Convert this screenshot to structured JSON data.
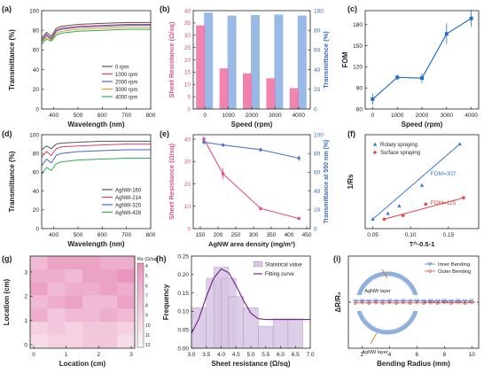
{
  "chart_data": [
    {
      "panel": "(a)",
      "type": "line",
      "xlabel": "Wavelength (nm)",
      "ylabel": "Transmittance (%)",
      "xlim": [
        350,
        800
      ],
      "ylim": [
        0,
        100
      ],
      "xticks": [
        "400",
        "500",
        "600",
        "700",
        "800"
      ],
      "yticks": [
        "0",
        "20",
        "40",
        "60",
        "80",
        "100"
      ],
      "legend_position": "bottom-right",
      "series": [
        {
          "name": "0 rpm",
          "color": "#555555",
          "x": [
            350,
            370,
            390,
            410,
            430,
            500,
            600,
            700,
            800
          ],
          "values": [
            72,
            78,
            74,
            82,
            84,
            86,
            87,
            88,
            88
          ]
        },
        {
          "name": "1000 rpm",
          "color": "#e04060",
          "x": [
            350,
            370,
            390,
            410,
            430,
            500,
            600,
            700,
            800
          ],
          "values": [
            70,
            76,
            72,
            80,
            82,
            84,
            85,
            86,
            86
          ]
        },
        {
          "name": "2000 rpm",
          "color": "#4466cc",
          "x": [
            350,
            370,
            390,
            410,
            430,
            500,
            600,
            700,
            800
          ],
          "values": [
            69,
            75,
            71,
            79,
            81,
            83,
            84,
            85,
            85
          ]
        },
        {
          "name": "3000 rpm",
          "color": "#d9a020",
          "x": [
            350,
            370,
            390,
            410,
            430,
            500,
            600,
            700,
            800
          ],
          "values": [
            68,
            73,
            70,
            77,
            79,
            81,
            82,
            83,
            83
          ]
        },
        {
          "name": "4000 rpm",
          "color": "#33aa55",
          "x": [
            350,
            370,
            390,
            410,
            430,
            500,
            600,
            700,
            800
          ],
          "values": [
            66,
            71,
            69,
            75,
            77,
            79,
            80,
            81,
            81
          ]
        }
      ]
    },
    {
      "panel": "(b)",
      "type": "bar",
      "xlabel": "Speed (rpm)",
      "ylabel": "Sheet Resistance (Ω/sq)",
      "ylabel2": "Transmittance (%)",
      "categories": [
        "0",
        "1000",
        "2000",
        "3000",
        "4000"
      ],
      "ylim": [
        0,
        40
      ],
      "ylim2": [
        0,
        100
      ],
      "yticks": [
        "0",
        "5",
        "10",
        "15",
        "20",
        "25",
        "30",
        "35",
        "40"
      ],
      "yticks2": [
        "0",
        "20",
        "40",
        "60",
        "80",
        "100"
      ],
      "series": [
        {
          "name": "Sheet Resistance",
          "color": "#ee6fa0",
          "values": [
            34,
            16.5,
            14.5,
            12.5,
            8.5
          ]
        },
        {
          "name": "Transmittance",
          "color": "#7fa7e0",
          "values": [
            98,
            95,
            95.5,
            96,
            95
          ]
        }
      ]
    },
    {
      "panel": "(c)",
      "type": "line",
      "xlabel": "Speed (rpm)",
      "ylabel": "FOM",
      "xlim": [
        -300,
        4300
      ],
      "ylim": [
        60,
        200
      ],
      "xticks": [
        "0",
        "1000",
        "2000",
        "3000",
        "4000"
      ],
      "yticks": [
        "60",
        "90",
        "120",
        "150",
        "180"
      ],
      "series": [
        {
          "name": "",
          "color": "#2a6fbf",
          "x": [
            0,
            1000,
            2000,
            3000,
            4000
          ],
          "values": [
            74,
            105,
            104,
            167,
            189
          ],
          "err": [
            8,
            4,
            7,
            15,
            12
          ]
        }
      ]
    },
    {
      "panel": "(d)",
      "type": "line",
      "xlabel": "Wavelength (nm)",
      "ylabel": "Transmittance (%)",
      "xlim": [
        350,
        800
      ],
      "ylim": [
        0,
        100
      ],
      "xticks": [
        "400",
        "500",
        "600",
        "700",
        "800"
      ],
      "yticks": [
        "0",
        "20",
        "40",
        "60",
        "80",
        "100"
      ],
      "legend_position": "bottom-right",
      "series": [
        {
          "name": "AgNW-160",
          "color": "#555555",
          "x": [
            350,
            370,
            390,
            410,
            430,
            500,
            600,
            700,
            800
          ],
          "values": [
            84,
            88,
            85,
            90,
            91,
            92,
            93,
            93,
            93
          ]
        },
        {
          "name": "AgNW-214",
          "color": "#e04060",
          "x": [
            350,
            370,
            390,
            410,
            430,
            500,
            600,
            700,
            800
          ],
          "values": [
            76,
            82,
            78,
            85,
            87,
            88,
            89,
            90,
            90
          ]
        },
        {
          "name": "AgNW-320",
          "color": "#4466cc",
          "x": [
            350,
            370,
            390,
            410,
            430,
            500,
            600,
            700,
            800
          ],
          "values": [
            67,
            74,
            70,
            78,
            80,
            82,
            83,
            84,
            84
          ]
        },
        {
          "name": "AgNW-428",
          "color": "#33aa55",
          "x": [
            350,
            370,
            390,
            410,
            430,
            500,
            600,
            700,
            800
          ],
          "values": [
            58,
            65,
            62,
            69,
            71,
            73,
            74,
            75,
            75
          ]
        }
      ]
    },
    {
      "panel": "(e)",
      "type": "line",
      "xlabel": "AgNW area density (mg/m²)",
      "ylabel": "Sheet Resistance (Ω/sq)",
      "ylabel2": "Transmittance at 550 nm (%)",
      "xlim": [
        130,
        460
      ],
      "ylim": [
        0,
        42
      ],
      "ylim2": [
        0,
        100
      ],
      "xticks": [
        "150",
        "200",
        "250",
        "300",
        "350",
        "400",
        "450"
      ],
      "yticks": [
        "0",
        "10",
        "20",
        "30",
        "40"
      ],
      "yticks2": [
        "0",
        "20",
        "40",
        "60",
        "80",
        "100"
      ],
      "series": [
        {
          "name": "Sheet Resistance",
          "color": "#e0508a",
          "x": [
            160,
            214,
            320,
            428
          ],
          "values": [
            40,
            24.5,
            9,
            4.5
          ],
          "err": [
            1.5,
            2.5,
            0.8,
            0.5
          ]
        },
        {
          "name": "Transmittance at 550 nm",
          "color": "#5577cc",
          "x": [
            160,
            214,
            320,
            428
          ],
          "values": [
            92,
            89,
            84,
            75
          ],
          "err": [
            2,
            1,
            2,
            3
          ]
        }
      ]
    },
    {
      "panel": "(f)",
      "type": "scatter",
      "xlabel": "T^-0.5-1",
      "ylabel": "1/Rs",
      "xlim": [
        0.04,
        0.19
      ],
      "ylim": [
        0,
        0.25
      ],
      "xticks": [
        "0.05",
        "0.10",
        "0.15"
      ],
      "yticks": [],
      "legend_position": "top-left",
      "series": [
        {
          "name": "Rotary spraying",
          "color": "#3a7bd5",
          "x": [
            0.05,
            0.07,
            0.085,
            0.115,
            0.165
          ],
          "values": [
            0.025,
            0.04,
            0.06,
            0.115,
            0.225
          ],
          "annotation": "FOM=307"
        },
        {
          "name": "Surface spraying",
          "color": "#e04848",
          "x": [
            0.065,
            0.09,
            0.12,
            0.17
          ],
          "values": [
            0.025,
            0.035,
            0.065,
            0.082
          ],
          "annotation": "FOM=115"
        }
      ]
    },
    {
      "panel": "(g)",
      "type": "heatmap",
      "xlabel": "Location (cm)",
      "ylabel": "Location (cm)",
      "colorbar_title": "Rs (Ω/sq)",
      "colorbar_ticks": [
        "4",
        "5",
        "6",
        "7",
        "8",
        "9",
        "10",
        "11",
        "12"
      ],
      "xticks": [
        "0",
        "1",
        "2",
        "3"
      ],
      "yticks": [
        "0",
        "1",
        "2",
        "3"
      ],
      "rows_top_to_bottom": [
        [
          7,
          5,
          5,
          5,
          6,
          6
        ],
        [
          6,
          6,
          7,
          5,
          5,
          4
        ],
        [
          5,
          7,
          6,
          6,
          5,
          6
        ],
        [
          7,
          6,
          5,
          7,
          7,
          5
        ],
        [
          6,
          8,
          7,
          7,
          6,
          7
        ],
        [
          9,
          8,
          9,
          8,
          8,
          9
        ],
        [
          10,
          9,
          9,
          8,
          8,
          10
        ]
      ]
    },
    {
      "panel": "(h)",
      "type": "bar",
      "xlabel": "Sheet resistance (Ω/sq)",
      "ylabel": "Frequency",
      "xlim": [
        3.0,
        7.0
      ],
      "ylim": [
        0,
        0.25
      ],
      "xticks": [
        "3.0",
        "3.5",
        "4.0",
        "4.5",
        "5.0",
        "5.5",
        "6.0",
        "6.5",
        "7.0"
      ],
      "yticks": [
        "0.00",
        "0.05",
        "0.10",
        "0.15",
        "0.20",
        "0.25"
      ],
      "legend_position": "top-right",
      "bin_starts": [
        3.0,
        3.5,
        3.75,
        4.0,
        4.25,
        4.75,
        5.25,
        5.75,
        6.25
      ],
      "bin_width": 0.5,
      "series": [
        {
          "name": "Statistical value",
          "color": "#d7c6e3",
          "values": [
            0.11,
            0.19,
            0.22,
            0.19,
            0.14,
            0.11,
            0.06,
            0.08,
            0.08
          ]
        },
        {
          "name": "Fitting curve",
          "color": "#7a2a8c",
          "x": [
            3.0,
            3.25,
            3.5,
            3.75,
            4.0,
            4.25,
            4.5,
            4.75,
            5.0,
            5.25,
            5.5,
            5.75,
            6.0,
            6.25,
            6.5,
            6.75,
            7.0
          ],
          "values": [
            0.04,
            0.08,
            0.14,
            0.19,
            0.215,
            0.205,
            0.17,
            0.13,
            0.095,
            0.08,
            0.078,
            0.078,
            0.078,
            0.078,
            0.078,
            0.078,
            0.078
          ]
        }
      ]
    },
    {
      "panel": "(i)",
      "type": "line",
      "xlabel": "Bending Radius (mm)",
      "ylabel": "ΔR/R₀",
      "xlim": [
        1,
        10.5
      ],
      "ylim": [
        -1,
        1
      ],
      "xticks": [
        "2",
        "4",
        "6",
        "8",
        "10"
      ],
      "legend_position": "top-right",
      "annotations": [
        "AgNW layer",
        "AgNW layer"
      ],
      "series": [
        {
          "name": "Inner Bending",
          "color": "#4a7bd0",
          "x": [
            1.5,
            2,
            2.5,
            3,
            3.5,
            4,
            4.5,
            5,
            5.5,
            6,
            6.5,
            7,
            7.5,
            8,
            8.5,
            9,
            9.5,
            10
          ],
          "values": [
            0.02,
            0.03,
            0.02,
            0.03,
            0.02,
            0.03,
            0.02,
            0.03,
            0.02,
            0.03,
            0.02,
            0.03,
            0.02,
            0.03,
            0.02,
            0.03,
            0.02,
            0.03
          ]
        },
        {
          "name": "Outer Bending",
          "color": "#e05050",
          "x": [
            1.5,
            2,
            2.5,
            3,
            3.5,
            4,
            4.5,
            5,
            5.5,
            6,
            6.5,
            7,
            7.5,
            8,
            8.5,
            9,
            9.5,
            10
          ],
          "values": [
            -0.02,
            -0.01,
            -0.02,
            -0.01,
            -0.02,
            -0.01,
            -0.02,
            -0.01,
            -0.02,
            -0.01,
            -0.02,
            -0.01,
            -0.02,
            -0.01,
            -0.02,
            -0.01,
            -0.02,
            -0.01
          ]
        }
      ]
    }
  ]
}
